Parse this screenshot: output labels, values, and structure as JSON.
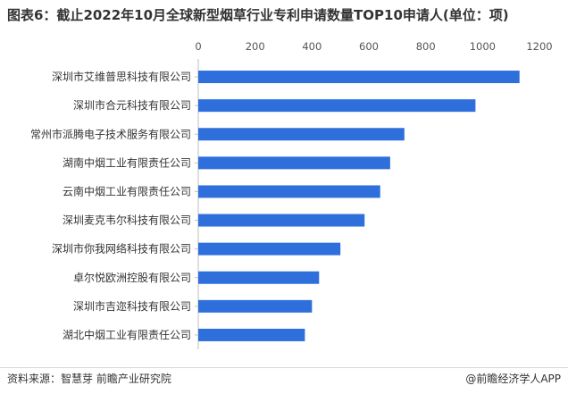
{
  "title": "图表6：截止2022年10月全球新型烟草行业专利申请数量TOP10申请人(单位：项)",
  "footer": {
    "source": "资料来源：智慧芽 前瞻产业研究院",
    "credit": "@前瞻经济学人APP"
  },
  "colors": {
    "bar": "#2e6fdc",
    "axis": "#bfbfbf"
  },
  "chart_data": {
    "type": "bar",
    "orientation": "horizontal",
    "title": "图表6：截止2022年10月全球新型烟草行业专利申请数量TOP10申请人(单位：项)",
    "xlabel": "",
    "ylabel": "",
    "xlim": [
      0,
      1200
    ],
    "ticks": [
      0,
      200,
      400,
      600,
      800,
      1000,
      1200
    ],
    "tick_labels": [
      "0",
      "200",
      "400",
      "600",
      "800",
      "1000",
      "1200"
    ],
    "grid": false,
    "categories": [
      "深圳市艾维普思科技有限公司",
      "深圳市合元科技有限公司",
      "常州市派腾电子技术服务有限公司",
      "湖南中烟工业有限责任公司",
      "云南中烟工业有限责任公司",
      "深圳麦克韦尔科技有限公司",
      "深圳市你我网络科技有限公司",
      "卓尔悦欧洲控股有限公司",
      "深圳市吉迩科技有限公司",
      "湖北中烟工业有限责任公司"
    ],
    "values": [
      1130,
      975,
      725,
      675,
      640,
      585,
      500,
      425,
      400,
      375
    ]
  }
}
